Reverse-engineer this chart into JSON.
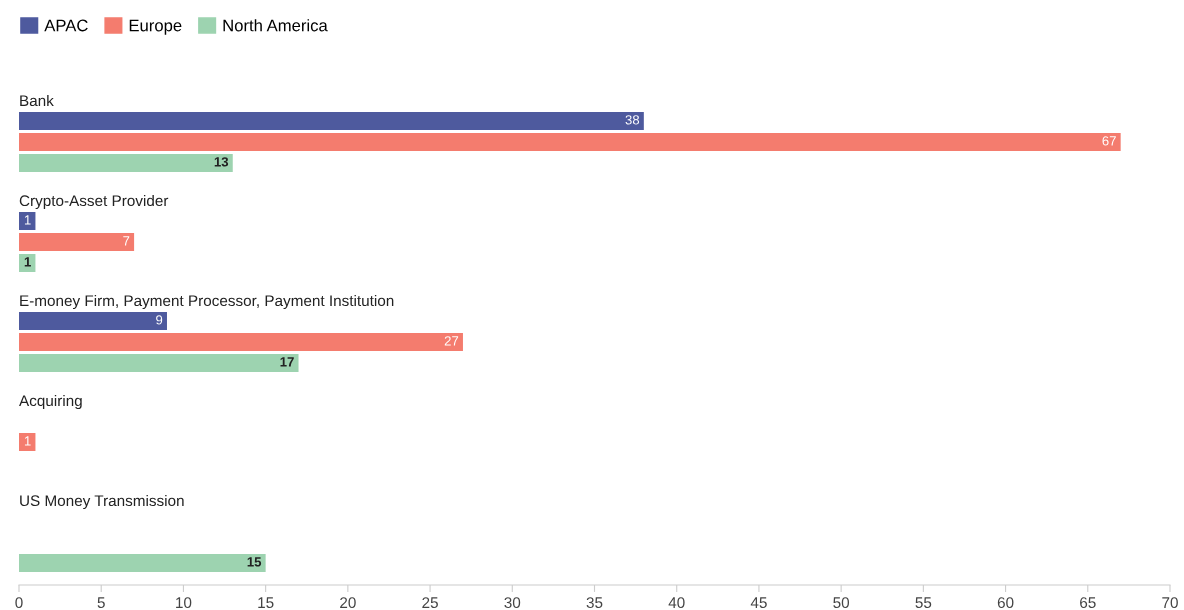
{
  "chart_data": {
    "type": "bar",
    "orientation": "horizontal",
    "categories": [
      "Bank",
      "Crypto-Asset Provider",
      "E-money Firm, Payment Processor, Payment Institution",
      "Acquiring",
      "US Money Transmission"
    ],
    "series": [
      {
        "name": "APAC",
        "color": "#4e5a9e",
        "values": [
          38,
          1,
          9,
          null,
          null
        ]
      },
      {
        "name": "Europe",
        "color": "#f47c6e",
        "values": [
          67,
          7,
          27,
          1,
          null
        ]
      },
      {
        "name": "North America",
        "color": "#9dd3b0",
        "values": [
          13,
          1,
          17,
          null,
          15
        ]
      }
    ],
    "xlim": [
      0,
      70
    ],
    "xticks": [
      0,
      5,
      10,
      15,
      20,
      25,
      30,
      35,
      40,
      45,
      50,
      55,
      60,
      65,
      70
    ],
    "data_labels": true,
    "legend": "top left",
    "grid": false
  }
}
